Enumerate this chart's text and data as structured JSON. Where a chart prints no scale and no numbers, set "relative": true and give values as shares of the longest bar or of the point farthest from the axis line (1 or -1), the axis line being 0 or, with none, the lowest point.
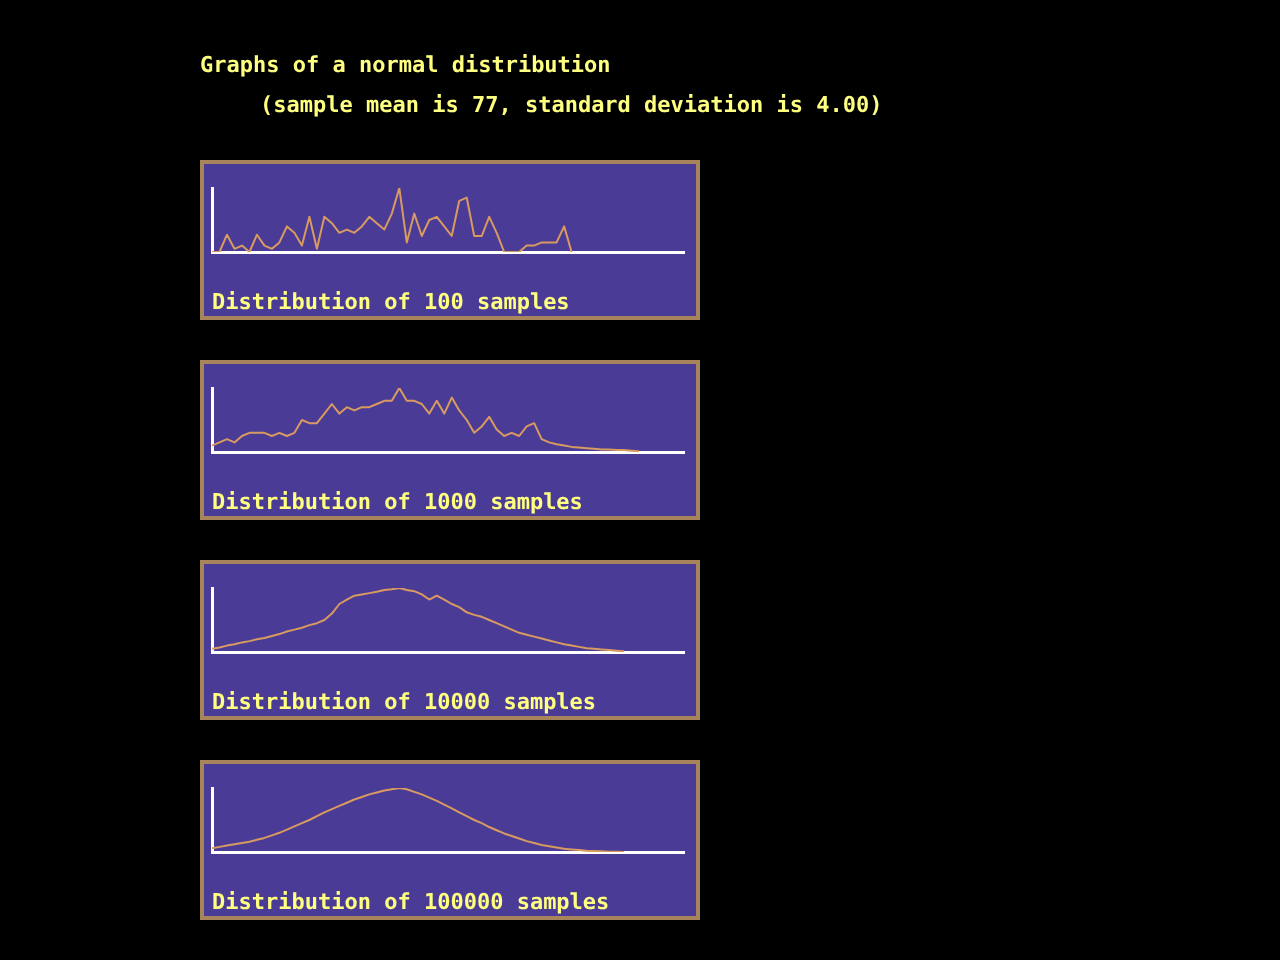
{
  "chart_data": [
    {
      "type": "line",
      "title": "Graphs of a normal distribution",
      "subtitle": "(sample mean is 77, standard deviation is 4.00)",
      "xlabel": "Distribution of 100 samples",
      "relative": true,
      "legend": false,
      "grid": false,
      "categories": [
        null,
        null,
        null,
        null,
        null,
        null,
        null,
        null,
        null,
        null,
        null,
        null,
        null,
        null,
        null,
        null,
        null,
        null,
        null,
        null,
        null,
        null,
        null,
        null,
        null,
        null,
        null,
        null,
        null,
        null,
        null,
        null,
        null,
        null,
        null,
        null,
        null,
        null,
        null,
        null,
        null,
        null,
        null,
        null,
        null,
        null,
        null,
        null,
        null,
        null,
        null,
        null,
        null,
        null,
        null,
        null,
        null,
        null,
        null,
        null,
        null,
        null,
        null,
        null
      ],
      "series": [
        {
          "color": "#d89a60",
          "values": [
            0,
            0,
            0.27,
            0.05,
            0.1,
            0,
            0.27,
            0.1,
            0.05,
            0.15,
            0.4,
            0.3,
            0.1,
            0.55,
            0.05,
            0.55,
            0.45,
            0.3,
            0.35,
            0.3,
            0.4,
            0.55,
            0.45,
            0.35,
            0.6,
            1,
            0.15,
            0.6,
            0.25,
            0.5,
            0.55,
            0.4,
            0.25,
            0.8,
            0.85,
            0.25,
            0.25,
            0.55,
            0.3,
            0,
            0,
            0,
            0.1,
            0.1,
            0.15,
            0.15,
            0.15,
            0.4,
            0,
            null,
            null,
            null,
            null,
            null,
            null,
            null,
            null,
            null,
            null,
            null,
            null,
            null,
            null,
            null
          ]
        }
      ]
    },
    {
      "type": "line",
      "xlabel": "Distribution of 1000 samples",
      "relative": true,
      "legend": false,
      "grid": false,
      "categories": [
        null,
        null,
        null,
        null,
        null,
        null,
        null,
        null,
        null,
        null,
        null,
        null,
        null,
        null,
        null,
        null,
        null,
        null,
        null,
        null,
        null,
        null,
        null,
        null,
        null,
        null,
        null,
        null,
        null,
        null,
        null,
        null,
        null,
        null,
        null,
        null,
        null,
        null,
        null,
        null,
        null,
        null,
        null,
        null,
        null,
        null,
        null,
        null,
        null,
        null,
        null,
        null,
        null,
        null,
        null,
        null,
        null,
        null,
        null,
        null,
        null,
        null,
        null,
        null
      ],
      "series": [
        {
          "color": "#d89a60",
          "values": [
            0.1,
            0.15,
            0.2,
            0.15,
            0.25,
            0.3,
            0.3,
            0.3,
            0.25,
            0.3,
            0.25,
            0.3,
            0.5,
            0.45,
            0.45,
            0.6,
            0.75,
            0.6,
            0.7,
            0.65,
            0.7,
            0.7,
            0.75,
            0.8,
            0.8,
            1,
            0.8,
            0.8,
            0.75,
            0.6,
            0.8,
            0.6,
            0.85,
            0.65,
            0.5,
            0.3,
            0.4,
            0.55,
            0.35,
            0.25,
            0.3,
            0.25,
            0.4,
            0.45,
            0.2,
            0.15,
            0.12,
            0.1,
            0.08,
            0.07,
            0.06,
            0.05,
            0.04,
            0.04,
            0.03,
            0.03,
            0.02,
            0.01,
            null,
            null,
            null,
            null,
            null,
            null
          ]
        }
      ]
    },
    {
      "type": "line",
      "xlabel": "Distribution of 10000 samples",
      "relative": true,
      "legend": false,
      "grid": false,
      "categories": [
        null,
        null,
        null,
        null,
        null,
        null,
        null,
        null,
        null,
        null,
        null,
        null,
        null,
        null,
        null,
        null,
        null,
        null,
        null,
        null,
        null,
        null,
        null,
        null,
        null,
        null,
        null,
        null,
        null,
        null,
        null,
        null,
        null,
        null,
        null,
        null,
        null,
        null,
        null,
        null,
        null,
        null,
        null,
        null,
        null,
        null,
        null,
        null,
        null,
        null,
        null,
        null,
        null,
        null,
        null,
        null,
        null,
        null,
        null,
        null,
        null,
        null,
        null,
        null
      ],
      "series": [
        {
          "color": "#d89a60",
          "values": [
            0.05,
            0.07,
            0.1,
            0.12,
            0.15,
            0.17,
            0.2,
            0.22,
            0.25,
            0.28,
            0.32,
            0.35,
            0.38,
            0.42,
            0.45,
            0.5,
            0.6,
            0.75,
            0.82,
            0.88,
            0.9,
            0.92,
            0.94,
            0.97,
            0.98,
            1,
            0.97,
            0.95,
            0.9,
            0.82,
            0.88,
            0.82,
            0.75,
            0.7,
            0.62,
            0.58,
            0.55,
            0.5,
            0.45,
            0.4,
            0.35,
            0.3,
            0.27,
            0.24,
            0.21,
            0.18,
            0.15,
            0.12,
            0.1,
            0.08,
            0.06,
            0.05,
            0.04,
            0.03,
            0.02,
            0.01,
            null,
            null,
            null,
            null,
            null,
            null,
            null,
            null
          ]
        }
      ]
    },
    {
      "type": "line",
      "xlabel": "Distribution of 100000 samples",
      "relative": true,
      "legend": false,
      "grid": false,
      "categories": [
        null,
        null,
        null,
        null,
        null,
        null,
        null,
        null,
        null,
        null,
        null,
        null,
        null,
        null,
        null,
        null,
        null,
        null,
        null,
        null,
        null,
        null,
        null,
        null,
        null,
        null,
        null,
        null,
        null,
        null,
        null,
        null,
        null,
        null,
        null,
        null,
        null,
        null,
        null,
        null,
        null,
        null,
        null,
        null,
        null,
        null,
        null,
        null,
        null,
        null,
        null,
        null,
        null,
        null,
        null,
        null,
        null,
        null,
        null,
        null,
        null,
        null,
        null,
        null
      ],
      "series": [
        {
          "color": "#d89a60",
          "values": [
            0.06,
            0.08,
            0.1,
            0.12,
            0.14,
            0.16,
            0.19,
            0.22,
            0.26,
            0.3,
            0.35,
            0.4,
            0.45,
            0.5,
            0.56,
            0.62,
            0.67,
            0.72,
            0.77,
            0.82,
            0.86,
            0.9,
            0.93,
            0.96,
            0.98,
            1,
            0.98,
            0.94,
            0.9,
            0.85,
            0.8,
            0.74,
            0.68,
            0.62,
            0.56,
            0.5,
            0.45,
            0.39,
            0.34,
            0.29,
            0.25,
            0.21,
            0.17,
            0.14,
            0.11,
            0.09,
            0.07,
            0.05,
            0.04,
            0.03,
            0.02,
            0.015,
            0.01,
            0.005,
            0.003,
            0,
            null,
            null,
            null,
            null,
            null,
            null,
            null,
            null
          ]
        }
      ]
    }
  ]
}
